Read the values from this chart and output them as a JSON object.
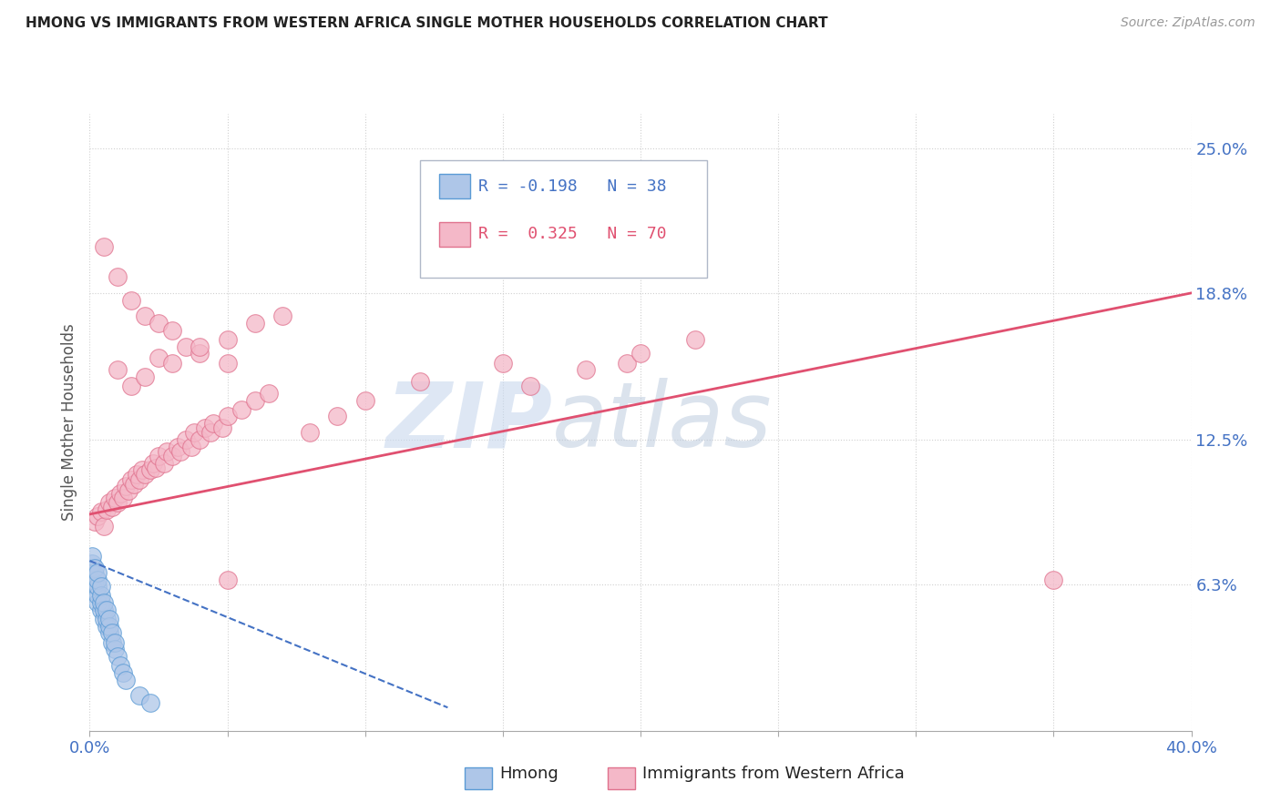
{
  "title": "HMONG VS IMMIGRANTS FROM WESTERN AFRICA SINGLE MOTHER HOUSEHOLDS CORRELATION CHART",
  "source": "Source: ZipAtlas.com",
  "ylabel": "Single Mother Households",
  "xlim": [
    0.0,
    0.4
  ],
  "ylim": [
    0.0,
    0.265
  ],
  "xticks": [
    0.0,
    0.05,
    0.1,
    0.15,
    0.2,
    0.25,
    0.3,
    0.35,
    0.4
  ],
  "ytick_positions": [
    0.063,
    0.125,
    0.188,
    0.25
  ],
  "ytick_labels": [
    "6.3%",
    "12.5%",
    "18.8%",
    "25.0%"
  ],
  "watermark_zip": "ZIP",
  "watermark_atlas": "atlas",
  "series1_name": "Hmong",
  "series1_color": "#aec6e8",
  "series1_border": "#5b9bd5",
  "series1_R": -0.198,
  "series1_N": 38,
  "series1_line_color": "#4472c4",
  "series2_name": "Immigrants from Western Africa",
  "series2_color": "#f4b8c8",
  "series2_border": "#e0728e",
  "series2_R": 0.325,
  "series2_N": 70,
  "series2_line_color": "#e05070",
  "background_color": "#ffffff",
  "grid_color": "#d0d0d0",
  "title_color": "#222222",
  "axis_label_color": "#555555",
  "tick_color": "#4472c4",
  "hmong_x": [
    0.0,
    0.0,
    0.001,
    0.001,
    0.001,
    0.001,
    0.002,
    0.002,
    0.002,
    0.002,
    0.003,
    0.003,
    0.003,
    0.003,
    0.003,
    0.004,
    0.004,
    0.004,
    0.004,
    0.005,
    0.005,
    0.005,
    0.006,
    0.006,
    0.006,
    0.007,
    0.007,
    0.007,
    0.008,
    0.008,
    0.009,
    0.009,
    0.01,
    0.011,
    0.012,
    0.013,
    0.018,
    0.022
  ],
  "hmong_y": [
    0.065,
    0.07,
    0.065,
    0.068,
    0.072,
    0.075,
    0.06,
    0.063,
    0.067,
    0.07,
    0.055,
    0.058,
    0.062,
    0.065,
    0.068,
    0.052,
    0.055,
    0.058,
    0.062,
    0.048,
    0.052,
    0.055,
    0.045,
    0.048,
    0.052,
    0.042,
    0.045,
    0.048,
    0.038,
    0.042,
    0.035,
    0.038,
    0.032,
    0.028,
    0.025,
    0.022,
    0.015,
    0.012
  ],
  "africa_x": [
    0.002,
    0.003,
    0.004,
    0.005,
    0.006,
    0.007,
    0.008,
    0.009,
    0.01,
    0.011,
    0.012,
    0.013,
    0.014,
    0.015,
    0.016,
    0.017,
    0.018,
    0.019,
    0.02,
    0.022,
    0.023,
    0.024,
    0.025,
    0.027,
    0.028,
    0.03,
    0.032,
    0.033,
    0.035,
    0.037,
    0.038,
    0.04,
    0.042,
    0.044,
    0.045,
    0.048,
    0.05,
    0.055,
    0.06,
    0.065,
    0.01,
    0.015,
    0.02,
    0.025,
    0.03,
    0.035,
    0.04,
    0.05,
    0.06,
    0.07,
    0.005,
    0.01,
    0.015,
    0.02,
    0.025,
    0.03,
    0.04,
    0.05,
    0.08,
    0.09,
    0.1,
    0.12,
    0.15,
    0.16,
    0.18,
    0.195,
    0.2,
    0.22,
    0.05,
    0.35
  ],
  "africa_y": [
    0.09,
    0.092,
    0.094,
    0.088,
    0.095,
    0.098,
    0.096,
    0.1,
    0.098,
    0.102,
    0.1,
    0.105,
    0.103,
    0.108,
    0.106,
    0.11,
    0.108,
    0.112,
    0.11,
    0.112,
    0.115,
    0.113,
    0.118,
    0.115,
    0.12,
    0.118,
    0.122,
    0.12,
    0.125,
    0.122,
    0.128,
    0.125,
    0.13,
    0.128,
    0.132,
    0.13,
    0.135,
    0.138,
    0.142,
    0.145,
    0.155,
    0.148,
    0.152,
    0.16,
    0.158,
    0.165,
    0.162,
    0.168,
    0.175,
    0.178,
    0.208,
    0.195,
    0.185,
    0.178,
    0.175,
    0.172,
    0.165,
    0.158,
    0.128,
    0.135,
    0.142,
    0.15,
    0.158,
    0.148,
    0.155,
    0.158,
    0.162,
    0.168,
    0.065,
    0.065
  ],
  "africa_line_x0": 0.0,
  "africa_line_x1": 0.4,
  "africa_line_y0": 0.093,
  "africa_line_y1": 0.188,
  "hmong_line_x0": 0.0,
  "hmong_line_x1": 0.13,
  "hmong_line_y0": 0.073,
  "hmong_line_y1": 0.01
}
